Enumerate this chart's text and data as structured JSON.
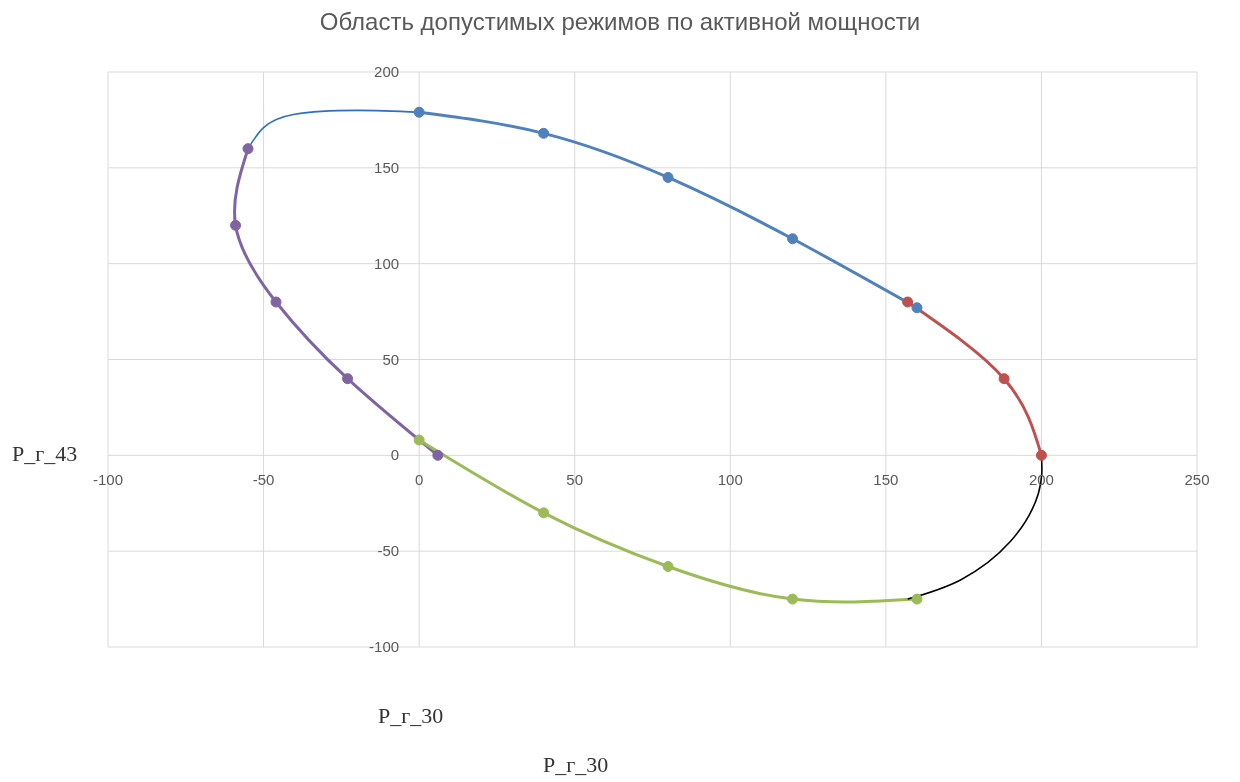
{
  "chart_data": {
    "type": "line",
    "title": "Область допустимых режимов по активной мощности",
    "xlabel": "P_г_30",
    "ylabel": "P_г_43",
    "annotations": [
      "P_г_30"
    ],
    "xlim": [
      -100,
      250
    ],
    "xticks": [
      -100,
      -50,
      0,
      50,
      100,
      150,
      200,
      250
    ],
    "ylim": [
      -100,
      200
    ],
    "yticks": [
      -100,
      -50,
      0,
      50,
      100,
      150,
      200
    ],
    "grid": true,
    "legend": false,
    "series": [
      {
        "color": "#4f81bd",
        "marker": "circle",
        "x": [
          0,
          40,
          80,
          120,
          160
        ],
        "values": [
          179,
          168,
          145,
          113,
          77
        ]
      },
      {
        "color": "#2e6fbf",
        "marker": "none",
        "x": [
          0,
          -20,
          -40,
          -50,
          -55
        ],
        "values": [
          179,
          180,
          178,
          171,
          160
        ]
      },
      {
        "color": "#8064a2",
        "marker": "circle",
        "x": [
          -55,
          -59,
          -46,
          -23,
          6
        ],
        "values": [
          160,
          120,
          80,
          40,
          0
        ]
      },
      {
        "color": "#9bbb59",
        "marker": "circle",
        "x": [
          0,
          40,
          80,
          120,
          160
        ],
        "values": [
          8,
          -30,
          -58,
          -75,
          -75
        ]
      },
      {
        "color": "#c0504d",
        "marker": "circle",
        "x": [
          157,
          188,
          200
        ],
        "values": [
          80,
          40,
          0
        ]
      },
      {
        "color": "#000000",
        "marker": "none",
        "x": [
          200,
          199,
          190,
          174,
          157
        ],
        "values": [
          0,
          -20,
          -45,
          -65,
          -75
        ]
      }
    ]
  }
}
